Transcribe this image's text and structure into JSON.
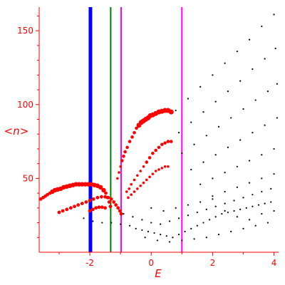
{
  "chart_data": {
    "type": "scatter",
    "title": "",
    "xlabel": "E",
    "ylabel": "<n>",
    "xlim": [
      -3.65,
      4.15
    ],
    "ylim": [
      0,
      166
    ],
    "x_ticks": [
      -2,
      0,
      2,
      4
    ],
    "x_tick_labels": [
      "-2",
      "0",
      "2",
      "4"
    ],
    "y_ticks": [
      50,
      100,
      150
    ],
    "y_tick_labels": [
      "50",
      "100",
      "150"
    ],
    "grid": false,
    "axis_color": "#ff0000",
    "vertical_lines": [
      {
        "x": -1.98,
        "color": "#0000ff",
        "style": "thick"
      },
      {
        "x": -1.32,
        "color": "#008000",
        "style": "thin"
      },
      {
        "x": -0.98,
        "color": "#ff00ff",
        "style": "thin"
      },
      {
        "x": 1.0,
        "color": "#ff00ff",
        "style": "thin"
      }
    ],
    "series": [
      {
        "color": "#ff0000",
        "marker": "large red dots",
        "points": [
          [
            -3.6,
            36
          ],
          [
            -3.52,
            37
          ],
          [
            -3.45,
            38
          ],
          [
            -3.38,
            39
          ],
          [
            -3.3,
            40
          ],
          [
            -3.22,
            41
          ],
          [
            -3.14,
            42
          ],
          [
            -3.05,
            42.5
          ],
          [
            -2.95,
            43
          ],
          [
            -2.85,
            44
          ],
          [
            -2.75,
            44.5
          ],
          [
            -2.65,
            45
          ],
          [
            -2.55,
            45.5
          ],
          [
            -2.45,
            46
          ],
          [
            -2.35,
            46
          ],
          [
            -2.25,
            46
          ],
          [
            -2.15,
            46
          ],
          [
            -2.05,
            46
          ],
          [
            -1.95,
            46
          ],
          [
            -1.85,
            45.5
          ],
          [
            -1.75,
            45
          ],
          [
            -1.65,
            44
          ],
          [
            -1.55,
            42
          ],
          [
            -1.48,
            40
          ],
          [
            -1.42,
            37
          ],
          [
            -1.37,
            34
          ],
          [
            -1.33,
            31
          ],
          [
            -3.0,
            27
          ],
          [
            -2.88,
            28
          ],
          [
            -2.75,
            29
          ],
          [
            -2.62,
            30
          ],
          [
            -2.5,
            31
          ],
          [
            -2.38,
            32
          ],
          [
            -2.25,
            33
          ],
          [
            -2.12,
            34
          ],
          [
            -2.0,
            35
          ],
          [
            -1.88,
            36
          ],
          [
            -1.75,
            37
          ],
          [
            -1.62,
            37.5
          ],
          [
            -1.5,
            37.5
          ],
          [
            -1.4,
            37
          ],
          [
            -1.3,
            36
          ],
          [
            -1.22,
            34
          ],
          [
            -1.15,
            32
          ],
          [
            -1.08,
            30
          ],
          [
            -1.02,
            28
          ],
          [
            -0.98,
            26
          ],
          [
            -2.0,
            28
          ],
          [
            -1.9,
            29
          ],
          [
            -1.8,
            30
          ],
          [
            -1.7,
            30.5
          ],
          [
            -1.6,
            30.5
          ],
          [
            -1.5,
            30
          ]
        ]
      },
      {
        "color": "#ff0000",
        "marker": "red dots along lobes",
        "points": [
          [
            -1.1,
            50
          ],
          [
            -1.05,
            54
          ],
          [
            -1.0,
            58
          ],
          [
            -0.95,
            62
          ],
          [
            -0.9,
            65
          ],
          [
            -0.85,
            68
          ],
          [
            -0.78,
            71
          ],
          [
            -0.7,
            75
          ],
          [
            -0.62,
            78
          ],
          [
            -0.55,
            81
          ],
          [
            -0.48,
            84
          ],
          [
            -0.4,
            86
          ],
          [
            -0.32,
            88
          ],
          [
            -0.25,
            89
          ],
          [
            -0.18,
            90
          ],
          [
            -0.1,
            91
          ],
          [
            -0.03,
            92.5
          ],
          [
            0.05,
            93
          ],
          [
            0.15,
            94
          ],
          [
            0.25,
            95
          ],
          [
            0.35,
            95.5
          ],
          [
            0.45,
            96
          ],
          [
            0.55,
            96
          ],
          [
            0.65,
            95
          ],
          [
            -0.8,
            41
          ],
          [
            -0.72,
            43
          ],
          [
            -0.65,
            46
          ],
          [
            -0.55,
            49
          ],
          [
            -0.45,
            52
          ],
          [
            -0.35,
            55
          ],
          [
            -0.25,
            58
          ],
          [
            -0.15,
            61
          ],
          [
            -0.05,
            64
          ],
          [
            0.05,
            67
          ],
          [
            0.15,
            69
          ],
          [
            0.25,
            71
          ],
          [
            0.35,
            73
          ],
          [
            0.45,
            74
          ],
          [
            0.55,
            75
          ],
          [
            0.65,
            75
          ],
          [
            -0.75,
            37
          ],
          [
            -0.65,
            39
          ],
          [
            -0.55,
            41
          ],
          [
            -0.45,
            43
          ],
          [
            -0.35,
            45
          ],
          [
            -0.25,
            47
          ],
          [
            -0.15,
            49
          ],
          [
            -0.05,
            51
          ],
          [
            0.05,
            53
          ],
          [
            0.15,
            55
          ],
          [
            0.25,
            56
          ],
          [
            0.35,
            57
          ],
          [
            0.45,
            58
          ],
          [
            0.55,
            58
          ]
        ]
      },
      {
        "color": "#000000",
        "marker": "small black dots (upper branches)",
        "points": [
          [
            0.8,
            96
          ],
          [
            1.2,
            104
          ],
          [
            1.6,
            112
          ],
          [
            2.0,
            120
          ],
          [
            2.4,
            128
          ],
          [
            2.8,
            136
          ],
          [
            3.2,
            144
          ],
          [
            3.6,
            153
          ],
          [
            4.0,
            161
          ],
          [
            0.9,
            81
          ],
          [
            1.3,
            88
          ],
          [
            1.7,
            95
          ],
          [
            2.1,
            102
          ],
          [
            2.5,
            109
          ],
          [
            2.9,
            116
          ],
          [
            3.3,
            124
          ],
          [
            3.7,
            131
          ],
          [
            4.05,
            138
          ],
          [
            1.0,
            67
          ],
          [
            1.4,
            73
          ],
          [
            1.8,
            79
          ],
          [
            2.2,
            85
          ],
          [
            2.6,
            91
          ],
          [
            3.0,
            97
          ],
          [
            3.4,
            103
          ],
          [
            3.8,
            109
          ],
          [
            4.1,
            114
          ],
          [
            1.3,
            56
          ],
          [
            1.7,
            61
          ],
          [
            2.1,
            66
          ],
          [
            2.5,
            71
          ],
          [
            2.9,
            76
          ],
          [
            3.3,
            81
          ],
          [
            3.7,
            86
          ],
          [
            4.1,
            91
          ],
          [
            1.6,
            46
          ],
          [
            2.0,
            50
          ],
          [
            2.4,
            54
          ],
          [
            2.8,
            58
          ],
          [
            3.2,
            62
          ],
          [
            3.6,
            66
          ],
          [
            4.0,
            70
          ],
          [
            2.0,
            38
          ],
          [
            2.4,
            41
          ],
          [
            2.8,
            44
          ],
          [
            3.2,
            47
          ],
          [
            3.6,
            50
          ],
          [
            4.0,
            53
          ]
        ]
      },
      {
        "color": "#000000",
        "marker": "small black dots (lower cluster)",
        "points": [
          [
            -2.2,
            23
          ],
          [
            -1.9,
            21
          ],
          [
            -1.6,
            20
          ],
          [
            -1.3,
            20
          ],
          [
            -1.0,
            19
          ],
          [
            -0.7,
            18
          ],
          [
            -0.5,
            16
          ],
          [
            -0.3,
            15
          ],
          [
            -0.1,
            14
          ],
          [
            0.1,
            13
          ],
          [
            0.3,
            12
          ],
          [
            0.5,
            11
          ],
          [
            0.7,
            10
          ],
          [
            0.9,
            12
          ],
          [
            1.1,
            14
          ],
          [
            1.3,
            16
          ],
          [
            1.5,
            18
          ],
          [
            1.7,
            20
          ],
          [
            1.9,
            22
          ],
          [
            2.1,
            24
          ],
          [
            2.3,
            26
          ],
          [
            2.5,
            27
          ],
          [
            2.7,
            28
          ],
          [
            2.9,
            29
          ],
          [
            3.1,
            30
          ],
          [
            3.3,
            31
          ],
          [
            3.5,
            32
          ],
          [
            3.7,
            33
          ],
          [
            3.9,
            34
          ],
          [
            -0.9,
            26
          ],
          [
            -0.6,
            24
          ],
          [
            -0.3,
            22
          ],
          [
            0.0,
            20
          ],
          [
            0.3,
            19
          ],
          [
            0.6,
            21
          ],
          [
            0.9,
            23
          ],
          [
            1.2,
            25
          ],
          [
            1.5,
            27
          ],
          [
            1.8,
            29
          ],
          [
            2.1,
            31
          ],
          [
            2.4,
            33
          ],
          [
            2.7,
            35
          ],
          [
            3.0,
            37
          ],
          [
            3.3,
            39
          ],
          [
            3.6,
            41
          ],
          [
            3.9,
            43
          ],
          [
            -0.2,
            10
          ],
          [
            0.2,
            8
          ],
          [
            0.6,
            7
          ],
          [
            1.0,
            8
          ],
          [
            1.4,
            9
          ],
          [
            1.8,
            10
          ],
          [
            2.2,
            12
          ],
          [
            2.6,
            14
          ],
          [
            3.0,
            16
          ],
          [
            3.4,
            18
          ],
          [
            3.8,
            20
          ],
          [
            0.0,
            30
          ],
          [
            0.4,
            28
          ],
          [
            0.8,
            30
          ],
          [
            1.2,
            32
          ],
          [
            1.6,
            34
          ],
          [
            2.0,
            36
          ],
          [
            2.4,
            28
          ],
          [
            2.8,
            24
          ],
          [
            3.2,
            22
          ],
          [
            3.6,
            26
          ],
          [
            4.0,
            28
          ]
        ]
      }
    ]
  }
}
